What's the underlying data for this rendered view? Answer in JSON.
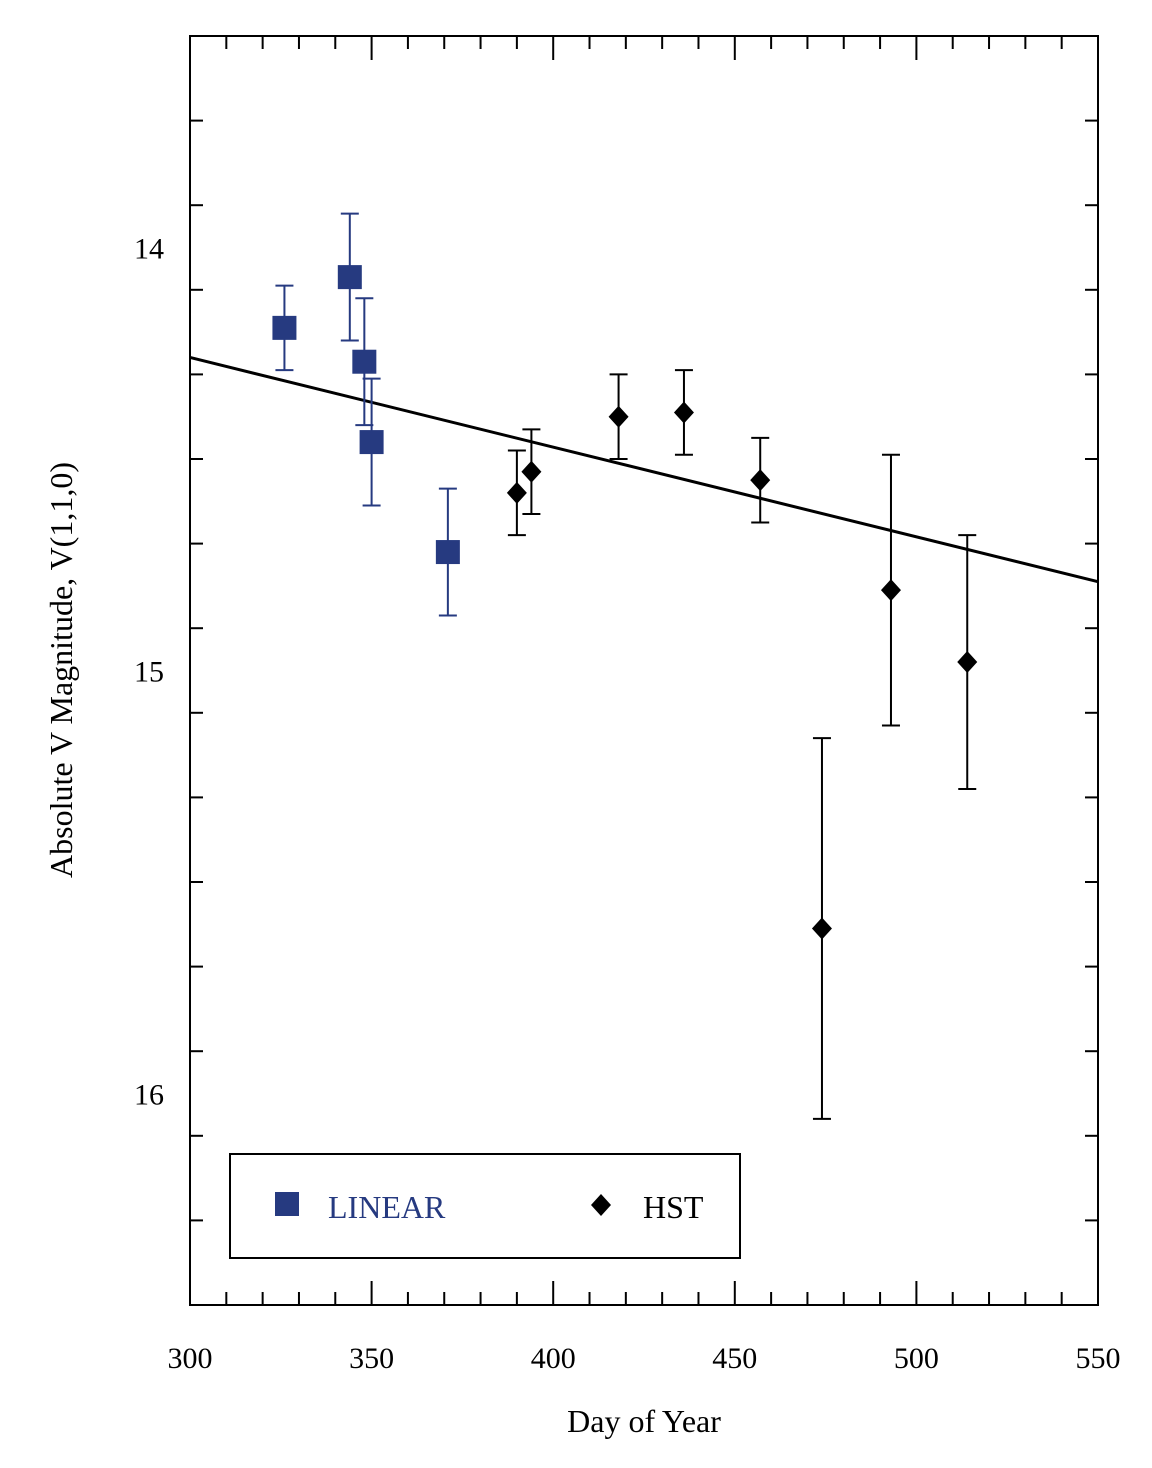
{
  "chart_data": {
    "type": "scatter",
    "title": "",
    "xlabel": "Day of Year",
    "ylabel": "Absolute V Magnitude, V(1,1,0)",
    "xlim": [
      300,
      550
    ],
    "ylim": [
      13.5,
      16.5
    ],
    "y_inverted": true,
    "x_ticks": [
      300,
      350,
      400,
      450,
      500,
      550
    ],
    "x_tick_labels": [
      "300",
      "350",
      "400",
      "450",
      "500",
      "550"
    ],
    "x_minor_step": 10,
    "y_ticks": [
      14,
      15,
      16
    ],
    "y_tick_labels": [
      "14",
      "15",
      "16"
    ],
    "y_minor_step": 0.2,
    "grid": false,
    "legend_position": "bottom-left",
    "series": [
      {
        "name": "LINEAR",
        "marker": "square",
        "color": "#263a80",
        "points": [
          {
            "x": 326,
            "y": 14.19,
            "err": 0.1
          },
          {
            "x": 344,
            "y": 14.07,
            "err": 0.15
          },
          {
            "x": 348,
            "y": 14.27,
            "err": 0.15
          },
          {
            "x": 350,
            "y": 14.46,
            "err": 0.15
          },
          {
            "x": 371,
            "y": 14.72,
            "err": 0.15
          }
        ]
      },
      {
        "name": "HST",
        "marker": "diamond",
        "color": "#000000",
        "points": [
          {
            "x": 390,
            "y": 14.58,
            "err": 0.1
          },
          {
            "x": 394,
            "y": 14.53,
            "err": 0.1
          },
          {
            "x": 418,
            "y": 14.4,
            "err": 0.1
          },
          {
            "x": 436,
            "y": 14.39,
            "err": 0.1
          },
          {
            "x": 457,
            "y": 14.55,
            "err": 0.1
          },
          {
            "x": 474,
            "y": 15.61,
            "err": 0.45
          },
          {
            "x": 493,
            "y": 14.81,
            "err": 0.32
          },
          {
            "x": 514,
            "y": 14.98,
            "err": 0.3
          }
        ]
      }
    ],
    "fit_line": {
      "name": "linear fit",
      "x": [
        300,
        550
      ],
      "y": [
        14.26,
        14.79
      ],
      "color": "#000000"
    }
  }
}
